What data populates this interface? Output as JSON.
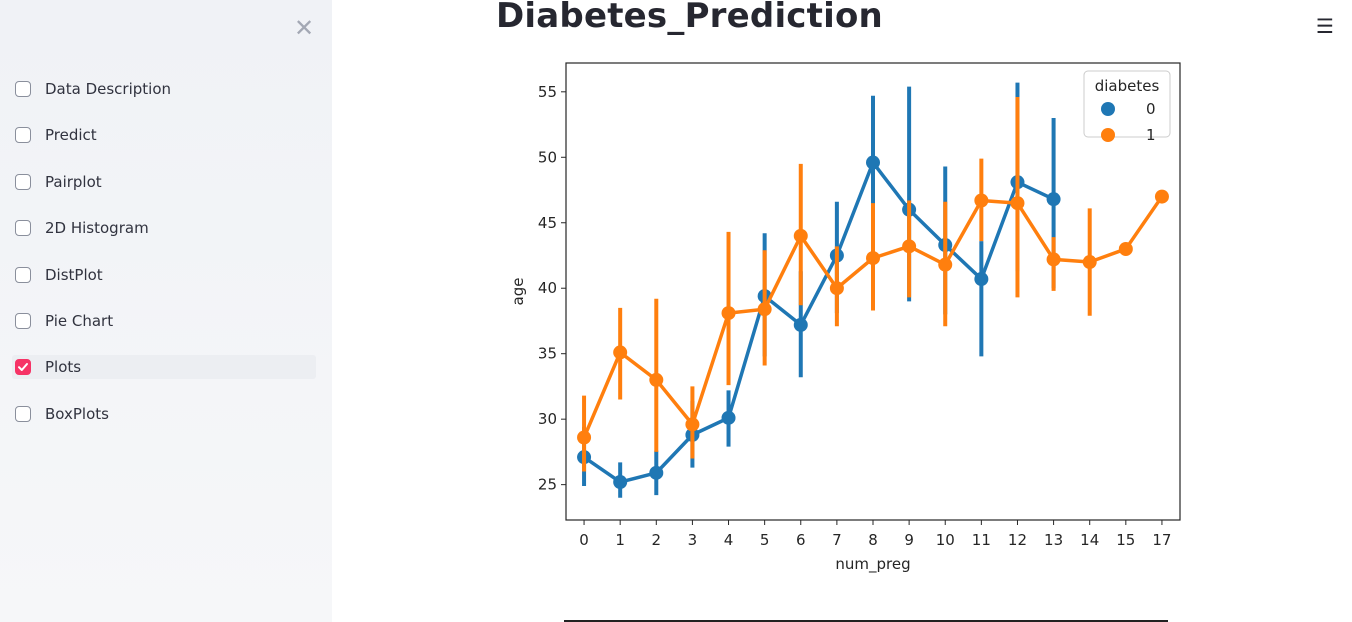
{
  "sidebar": {
    "close_icon": "close-icon",
    "items": [
      {
        "label": "Data Description",
        "checked": false
      },
      {
        "label": "Predict",
        "checked": false
      },
      {
        "label": "Pairplot",
        "checked": false
      },
      {
        "label": "2D Histogram",
        "checked": false
      },
      {
        "label": "DistPlot",
        "checked": false
      },
      {
        "label": "Pie Chart",
        "checked": false
      },
      {
        "label": "Plots",
        "checked": true
      },
      {
        "label": "BoxPlots",
        "checked": false
      }
    ]
  },
  "header": {
    "title": "Diabetes_Prediction",
    "menu_icon": "hamburger-menu-icon"
  },
  "colors": {
    "series0": "#1f77b4",
    "series1": "#ff7f0e",
    "accent": "#f63366"
  },
  "chart_data": {
    "type": "line",
    "xlabel": "num_preg",
    "ylabel": "age",
    "categories": [
      "0",
      "1",
      "2",
      "3",
      "4",
      "5",
      "6",
      "7",
      "8",
      "9",
      "10",
      "11",
      "12",
      "13",
      "14",
      "15",
      "17"
    ],
    "yticks": [
      25,
      30,
      35,
      40,
      45,
      50,
      55
    ],
    "ylim": [
      22.3,
      57.2
    ],
    "grid": false,
    "legend": {
      "title": "diabetes",
      "placement": "top-right"
    },
    "series": [
      {
        "name": "0",
        "values": [
          27.1,
          25.2,
          25.9,
          28.8,
          30.1,
          39.4,
          37.2,
          42.5,
          49.6,
          46.0,
          43.3,
          40.7,
          48.1,
          46.8,
          null,
          null,
          null
        ],
        "ci": [
          [
            24.9,
            29.4
          ],
          [
            24.0,
            26.7
          ],
          [
            24.2,
            27.6
          ],
          [
            26.3,
            31.4
          ],
          [
            27.9,
            32.2
          ],
          [
            34.8,
            44.2
          ],
          [
            33.2,
            41.3
          ],
          [
            38.1,
            46.6
          ],
          [
            45.0,
            54.7
          ],
          [
            39.0,
            55.4
          ],
          [
            38.0,
            49.3
          ],
          [
            34.8,
            43.6
          ],
          [
            41.3,
            55.7
          ],
          [
            40.0,
            53.0
          ],
          null,
          null,
          null
        ]
      },
      {
        "name": "1",
        "values": [
          28.6,
          35.1,
          33.0,
          29.6,
          38.1,
          38.4,
          44.0,
          40.0,
          42.3,
          43.2,
          41.8,
          46.7,
          46.5,
          42.2,
          42.0,
          43.0,
          47.0
        ],
        "ci": [
          [
            26.0,
            31.8
          ],
          [
            31.5,
            38.5
          ],
          [
            27.5,
            39.2
          ],
          [
            27.0,
            32.5
          ],
          [
            32.6,
            44.3
          ],
          [
            34.1,
            42.9
          ],
          [
            38.7,
            49.5
          ],
          [
            37.1,
            43.2
          ],
          [
            38.3,
            46.5
          ],
          [
            39.3,
            46.7
          ],
          [
            37.1,
            46.6
          ],
          [
            43.6,
            49.9
          ],
          [
            39.3,
            54.6
          ],
          [
            39.8,
            43.9
          ],
          [
            37.9,
            46.1
          ],
          null,
          null
        ]
      }
    ]
  }
}
